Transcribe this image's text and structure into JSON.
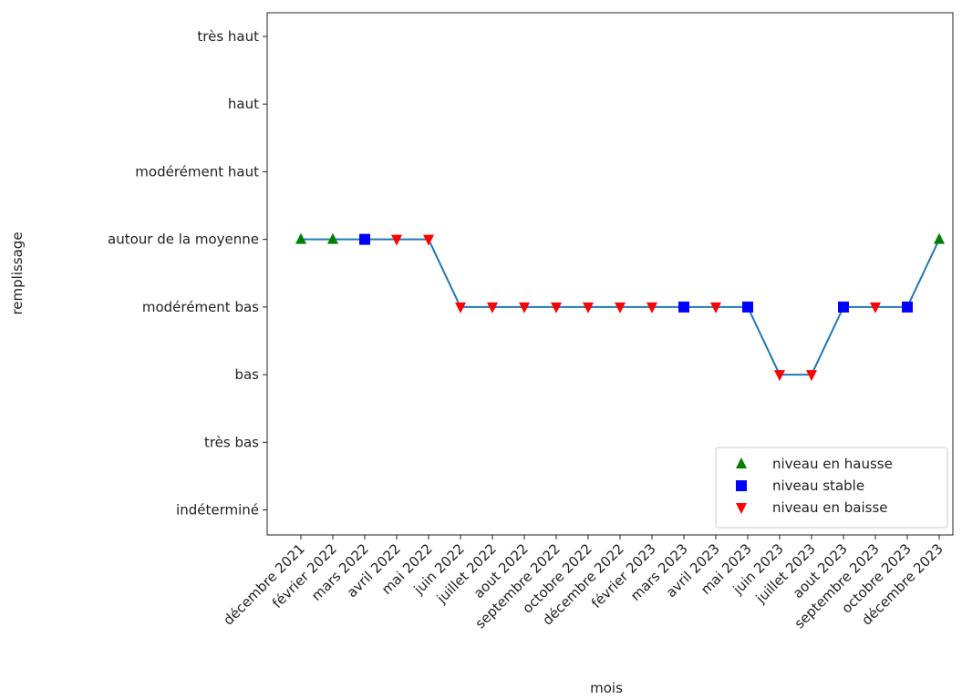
{
  "chart_data": {
    "type": "line",
    "xlabel": "mois",
    "ylabel": "remplissage",
    "categories": [
      "décembre 2021",
      "février 2022",
      "mars 2022",
      "avril 2022",
      "mai 2022",
      "juin 2022",
      "juillet 2022",
      "aout 2022",
      "septembre 2022",
      "octobre 2022",
      "décembre 2022",
      "février 2023",
      "mars 2023",
      "avril 2023",
      "mai 2023",
      "juin 2023",
      "juillet 2023",
      "aout 2023",
      "septembre 2023",
      "octobre 2023",
      "décembre 2023"
    ],
    "series": [
      {
        "color": "#1f77b4",
        "marker": "none",
        "values": [
          4,
          4,
          4,
          4,
          4,
          3,
          3,
          3,
          3,
          3,
          3,
          3,
          3,
          3,
          3,
          2,
          2,
          3,
          3,
          3,
          4
        ]
      },
      {
        "name": "niveau en hausse",
        "color": "green",
        "marker": "^",
        "values": [
          4,
          4,
          null,
          null,
          null,
          null,
          null,
          null,
          null,
          null,
          null,
          null,
          null,
          null,
          null,
          null,
          null,
          null,
          null,
          null,
          4
        ]
      },
      {
        "name": "niveau stable",
        "color": "blue",
        "marker": "s",
        "values": [
          null,
          null,
          4,
          null,
          null,
          null,
          null,
          null,
          null,
          null,
          null,
          null,
          3,
          null,
          3,
          null,
          null,
          3,
          null,
          3,
          null
        ]
      },
      {
        "name": "niveau en baisse",
        "color": "red",
        "marker": "v",
        "values": [
          null,
          null,
          null,
          4,
          4,
          3,
          3,
          3,
          3,
          3,
          3,
          3,
          null,
          3,
          null,
          2,
          2,
          null,
          3,
          null,
          null
        ]
      }
    ],
    "ylim": [
      -0.37,
      7.35
    ],
    "yticks": [
      {
        "value": 0,
        "label": "indéterminé"
      },
      {
        "value": 1,
        "label": "très bas"
      },
      {
        "value": 2,
        "label": "bas"
      },
      {
        "value": 3,
        "label": "modérément bas"
      },
      {
        "value": 4,
        "label": "autour de la moyenne"
      },
      {
        "value": 5,
        "label": "modérément haut"
      },
      {
        "value": 6,
        "label": "haut"
      },
      {
        "value": 7,
        "label": "très haut"
      }
    ],
    "legend": "lower right"
  }
}
